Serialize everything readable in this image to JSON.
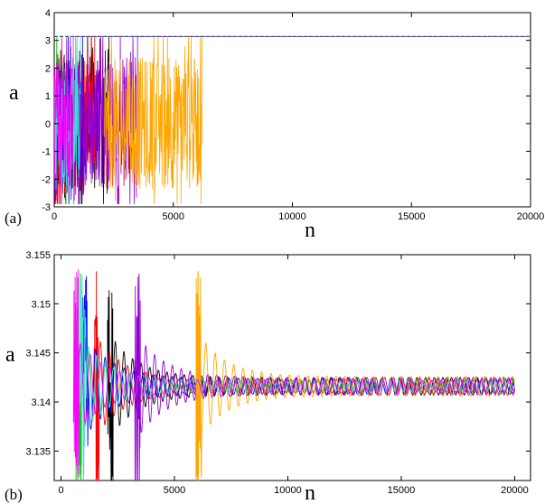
{
  "figure": {
    "colors": {
      "black": "#000000",
      "red": "#ff0000",
      "green": "#00cc00",
      "blue": "#0000ff",
      "purple": "#9400d3",
      "orange": "#ffa500",
      "cyan": "#40e0d0",
      "magenta": "#ff00ff",
      "yellow": "#d4d400",
      "brown": "#8b4513"
    }
  },
  "chart_data": [
    {
      "panel_label": "(a)",
      "type": "line",
      "xlabel": "n",
      "ylabel": "a",
      "xlim": [
        0,
        20000
      ],
      "ylim": [
        -3,
        4
      ],
      "xticks": [
        "0",
        "5000",
        "10000",
        "15000",
        "20000"
      ],
      "yticks": [
        "-3",
        "-2",
        "-1",
        "0",
        "1",
        "2",
        "3",
        "4"
      ],
      "grid": false,
      "plateau_value": 3.1416,
      "series": [
        {
          "color": "black",
          "chaotic_until": 2300,
          "amplitude": 2.8
        },
        {
          "color": "red",
          "chaotic_until": 1700,
          "amplitude": 2.6
        },
        {
          "color": "green",
          "chaotic_until": 900,
          "amplitude": 2.4
        },
        {
          "color": "blue",
          "chaotic_until": 1200,
          "amplitude": 2.5
        },
        {
          "color": "purple",
          "chaotic_until": 3500,
          "amplitude": 2.4
        },
        {
          "color": "orange",
          "chaotic_from": 2100,
          "chaotic_until": 6200,
          "amplitude": 2.4
        },
        {
          "color": "cyan",
          "chaotic_until": 1100,
          "amplitude": 2.4
        },
        {
          "color": "magenta",
          "chaotic_until": 800,
          "amplitude": 2.3
        }
      ]
    },
    {
      "panel_label": "(b)",
      "type": "line",
      "xlabel": "n",
      "ylabel": "a",
      "xlim": [
        0,
        20000
      ],
      "ylim": [
        3.132,
        3.155
      ],
      "xticks": [
        "0",
        "5000",
        "10000",
        "15000",
        "20000"
      ],
      "yticks": [
        "3.135",
        "3.14",
        "3.145",
        "3.15",
        "3.155"
      ],
      "ytick_values": [
        3.135,
        3.14,
        3.145,
        3.15,
        3.155
      ],
      "grid": false,
      "center_value": 3.1416,
      "series": [
        {
          "color": "black",
          "start": 2300,
          "amplitude": 0.0009,
          "period": 380
        },
        {
          "color": "red",
          "start": 1700,
          "amplitude": 0.0007,
          "period": 400
        },
        {
          "color": "green",
          "start": 900,
          "amplitude": 0.0006,
          "period": 360
        },
        {
          "color": "blue",
          "start": 1200,
          "amplitude": 0.0008,
          "period": 420
        },
        {
          "color": "purple",
          "start": 3500,
          "amplitude": 0.0009,
          "period": 390
        },
        {
          "color": "orange",
          "start": 6200,
          "amplitude": 0.001,
          "period": 410
        },
        {
          "color": "cyan",
          "start": 1100,
          "amplitude": 0.0005,
          "period": 370
        },
        {
          "color": "magenta",
          "start": 800,
          "amplitude": 0.0006,
          "period": 430
        }
      ]
    }
  ]
}
